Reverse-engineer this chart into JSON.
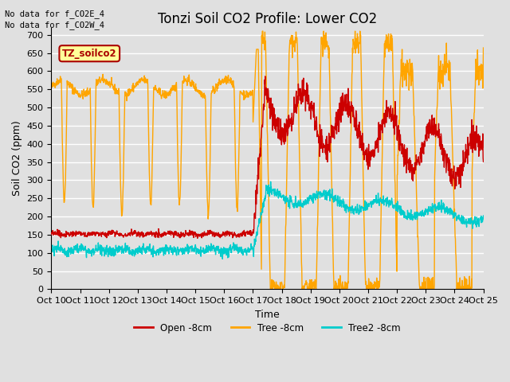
{
  "title": "Tonzi Soil CO2 Profile: Lower CO2",
  "xlabel": "Time",
  "ylabel": "Soil CO2 (ppm)",
  "top_left_text1": "No data for f_CO2E_4",
  "top_left_text2": "No data for f_CO2W_4",
  "legend_label_text": "TZ_soilco2",
  "ylim": [
    0,
    720
  ],
  "yticks": [
    0,
    50,
    100,
    150,
    200,
    250,
    300,
    350,
    400,
    450,
    500,
    550,
    600,
    650,
    700
  ],
  "xtick_labels": [
    "Oct 10",
    "Oct 11",
    "Oct 12",
    "Oct 13",
    "Oct 14",
    "Oct 15",
    "Oct 16",
    "Oct 17",
    "Oct 18",
    "Oct 19",
    "Oct 20",
    "Oct 21",
    "Oct 22",
    "Oct 23",
    "Oct 24",
    "Oct 25"
  ],
  "open_color": "#CC0000",
  "tree_color": "#FFA500",
  "tree2_color": "#00CCCC",
  "legend_entries": [
    "Open -8cm",
    "Tree -8cm",
    "Tree2 -8cm"
  ],
  "background_color": "#E0E0E0",
  "plot_bg_color": "#E0E0E0",
  "grid_color": "#FFFFFF",
  "box_color": "#FFFF99",
  "box_edge_color": "#AA0000",
  "box_text_color": "#AA0000",
  "title_fontsize": 12,
  "axis_label_fontsize": 9,
  "tick_fontsize": 8
}
